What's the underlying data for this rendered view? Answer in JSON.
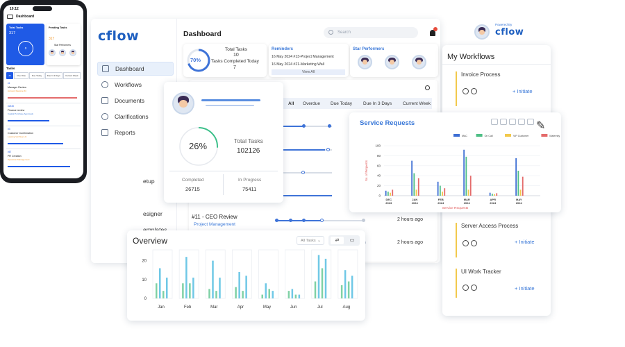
{
  "brand": {
    "logo": "cflow",
    "powered_by": "Powered By"
  },
  "header": {
    "title": "Dashboard",
    "search_placeholder": "Search",
    "notification_count": "1"
  },
  "sidebar": {
    "items": [
      {
        "label": "Dashboard",
        "icon": "dashboard-icon",
        "active": true
      },
      {
        "label": "Workflows",
        "icon": "workflow-icon"
      },
      {
        "label": "Documents",
        "icon": "document-icon"
      },
      {
        "label": "Clarifications",
        "icon": "clarification-icon"
      },
      {
        "label": "Reports",
        "icon": "report-icon"
      }
    ],
    "partial_items": [
      "etup",
      "esigner",
      "emplates"
    ]
  },
  "summary": {
    "ring_pct": "70%",
    "ring_value": 0.7,
    "total_tasks_label": "Total Tasks",
    "total_tasks": "10",
    "completed_label": "Tasks Completed Today",
    "completed": "7"
  },
  "reminders": {
    "title": "Reminders",
    "items": [
      "16 May 2024 #13-Project Management",
      "16 May 2024 #21-Marketing Wall"
    ],
    "view_all": "View All"
  },
  "star_performers": {
    "title": "Star Performers"
  },
  "task_tabs": [
    "All",
    "Overdue",
    "Due Today",
    "Due In 3 Days",
    "Current Week"
  ],
  "task_rows": [
    {
      "title": "#11 - CEO Review",
      "subtitle": "Project Management",
      "due": "2 hours ago",
      "progress": 0.5
    },
    {
      "title": "",
      "subtitle": "",
      "due": "2 hours ago",
      "progress": 0.45
    }
  ],
  "tasks_card": {
    "percent": "26%",
    "ring_value": 0.26,
    "total_label": "Total Tasks",
    "total": "102126",
    "completed_label": "Completed",
    "completed": "26715",
    "in_progress_label": "In Progress",
    "in_progress": "75411"
  },
  "workflows": {
    "title": "My Workflows",
    "initiate": "+ Initiate",
    "items": [
      "Invoice Process",
      "Server Access Process",
      "UI Work Tracker"
    ]
  },
  "overview": {
    "title": "Overview",
    "filter": "All Tasks"
  },
  "phone": {
    "time": "10:12",
    "title": "Dashboard",
    "total_tasks": "Total Tasks",
    "total_value": "317",
    "pending_tasks": "Pending Tasks",
    "pending_value": "317",
    "star_performers": "Star Performers",
    "tasks": "Tasks",
    "ring_value": "0",
    "tabs": [
      "All",
      "Over Due",
      "Due Today",
      "Due In 3 Days",
      "Current Week"
    ],
    "list": [
      {
        "id": "#1",
        "title": "Manager Review",
        "sub": "Account Receive #4"
      },
      {
        "id": "#2345",
        "title": "Finance review",
        "sub": "Capital Purchase Approvals"
      },
      {
        "id": "#3",
        "title": "Customer Confirmation",
        "sub": "Leasing Vat Step H1"
      },
      {
        "id": "#67",
        "title": "PR Creation",
        "sub": "Operation Management"
      }
    ]
  },
  "chart_data": [
    {
      "type": "bar",
      "title": "Service Requests",
      "xlabel": "Service Requests",
      "ylabel": "No. of Requests",
      "categories": [
        "DEC 2023",
        "JAN 2024",
        "FEB 2024",
        "MAR 2024",
        "APR 2024",
        "MAY 2024"
      ],
      "ylim": [
        0,
        100
      ],
      "yticks": [
        0,
        20,
        40,
        60,
        80,
        100
      ],
      "legend_position": "top-right",
      "series": [
        {
          "name": "MAC",
          "color": "#3e6fd4",
          "values": [
            10,
            70,
            28,
            92,
            6,
            75
          ]
        },
        {
          "name": "On Call",
          "color": "#4fbf86",
          "values": [
            8,
            45,
            20,
            78,
            4,
            50
          ]
        },
        {
          "name": "VIP Customer",
          "color": "#f2c94c",
          "values": [
            6,
            12,
            8,
            12,
            3,
            12
          ]
        },
        {
          "name": "Maternity",
          "color": "#e46b6b",
          "values": [
            12,
            35,
            15,
            40,
            5,
            38
          ]
        }
      ]
    },
    {
      "type": "bar",
      "title": "Overview",
      "categories": [
        "Jan",
        "Feb",
        "Mar",
        "Apr",
        "May",
        "Jun",
        "Jul",
        "Aug"
      ],
      "ylim": [
        0,
        25
      ],
      "yticks": [
        0,
        10,
        20
      ],
      "series": [
        {
          "name": "",
          "color": "#7fd1a5",
          "values": [
            8,
            8,
            5,
            6,
            2,
            4,
            9,
            7
          ]
        },
        {
          "name": "",
          "color": "#6fc8e6",
          "values": [
            16,
            22,
            20,
            14,
            8,
            5,
            23,
            15
          ]
        },
        {
          "name": "",
          "color": "#7fd1a5",
          "values": [
            4,
            8,
            4,
            4,
            5,
            2,
            16,
            9
          ]
        },
        {
          "name": "",
          "color": "#6fc8e6",
          "values": [
            11,
            11,
            11,
            12,
            4,
            2,
            21,
            12
          ]
        }
      ]
    }
  ]
}
